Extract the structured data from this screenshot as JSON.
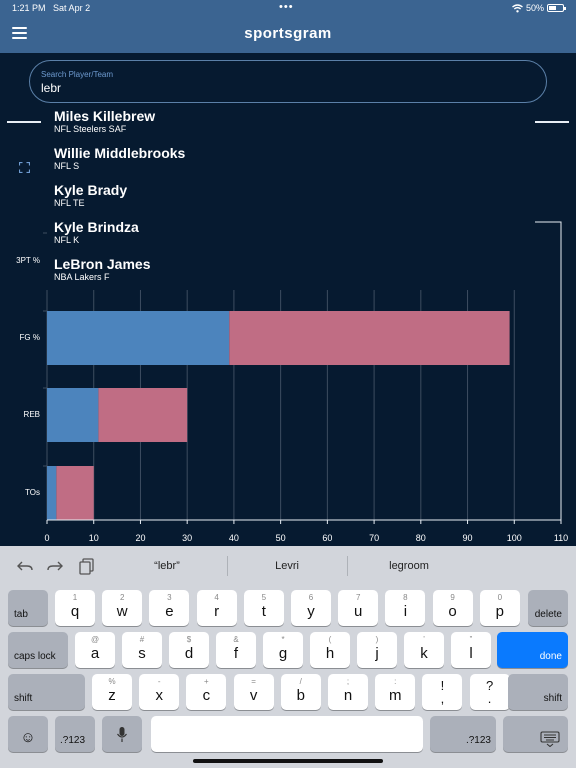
{
  "status_bar": {
    "time": "1:21 PM",
    "date": "Sat Apr 2",
    "dots": "•••",
    "battery": "50%",
    "battery_level": 0.5
  },
  "header": {
    "title": "sportsgram"
  },
  "search": {
    "label": "Search Player/Team",
    "value": "lebr"
  },
  "suggestions": [
    {
      "name": "Miles Killebrew",
      "sub": "NFL Steelers SAF"
    },
    {
      "name": "Willie Middlebrooks",
      "sub": "NFL S"
    },
    {
      "name": "Kyle Brady",
      "sub": "NFL TE"
    },
    {
      "name": "Kyle Brindza",
      "sub": "NFL K"
    },
    {
      "name": "LeBron James",
      "sub": "NBA Lakers F"
    }
  ],
  "chart_data": {
    "type": "bar",
    "orientation": "horizontal",
    "stacked": true,
    "categories": [
      "3PT %",
      "FG %",
      "REB",
      "TOs"
    ],
    "series": [
      {
        "color": "#4c84bd",
        "values": [
          null,
          39,
          11,
          2
        ]
      },
      {
        "color": "#c06d84",
        "values": [
          null,
          60,
          19,
          8
        ]
      }
    ],
    "xticks": [
      "0",
      "10",
      "20",
      "30",
      "40",
      "50",
      "60",
      "70",
      "80",
      "90",
      "100",
      "110"
    ],
    "xlim": [
      0,
      110
    ],
    "grid": true
  },
  "keyboard": {
    "predictions": [
      "“lebr”",
      "Levri",
      "legroom"
    ],
    "row1": [
      {
        "main": "q",
        "alt": "1"
      },
      {
        "main": "w",
        "alt": "2"
      },
      {
        "main": "e",
        "alt": "3"
      },
      {
        "main": "r",
        "alt": "4"
      },
      {
        "main": "t",
        "alt": "5"
      },
      {
        "main": "y",
        "alt": "6"
      },
      {
        "main": "u",
        "alt": "7"
      },
      {
        "main": "i",
        "alt": "8"
      },
      {
        "main": "o",
        "alt": "9"
      },
      {
        "main": "p",
        "alt": "0"
      }
    ],
    "row2": [
      {
        "main": "a",
        "alt": "@"
      },
      {
        "main": "s",
        "alt": "#"
      },
      {
        "main": "d",
        "alt": "$"
      },
      {
        "main": "f",
        "alt": "&"
      },
      {
        "main": "g",
        "alt": "*"
      },
      {
        "main": "h",
        "alt": "("
      },
      {
        "main": "j",
        "alt": ")"
      },
      {
        "main": "k",
        "alt": "’"
      },
      {
        "main": "l",
        "alt": "”"
      }
    ],
    "row3": [
      {
        "main": "z",
        "alt": "%"
      },
      {
        "main": "x",
        "alt": "-"
      },
      {
        "main": "c",
        "alt": "+"
      },
      {
        "main": "v",
        "alt": "="
      },
      {
        "main": "b",
        "alt": "/"
      },
      {
        "main": "n",
        "alt": ";"
      },
      {
        "main": "m",
        "alt": ":"
      },
      {
        "main": "!",
        "alt": ""
      },
      {
        "main": "?",
        "alt": ""
      }
    ],
    "row3_sub": {
      "exclam": ",",
      "question": "."
    },
    "tab": "tab",
    "delete": "delete",
    "caps": "caps lock",
    "done": "done",
    "shift": "shift",
    "numbers": ".?123",
    "emoji": "☺"
  }
}
